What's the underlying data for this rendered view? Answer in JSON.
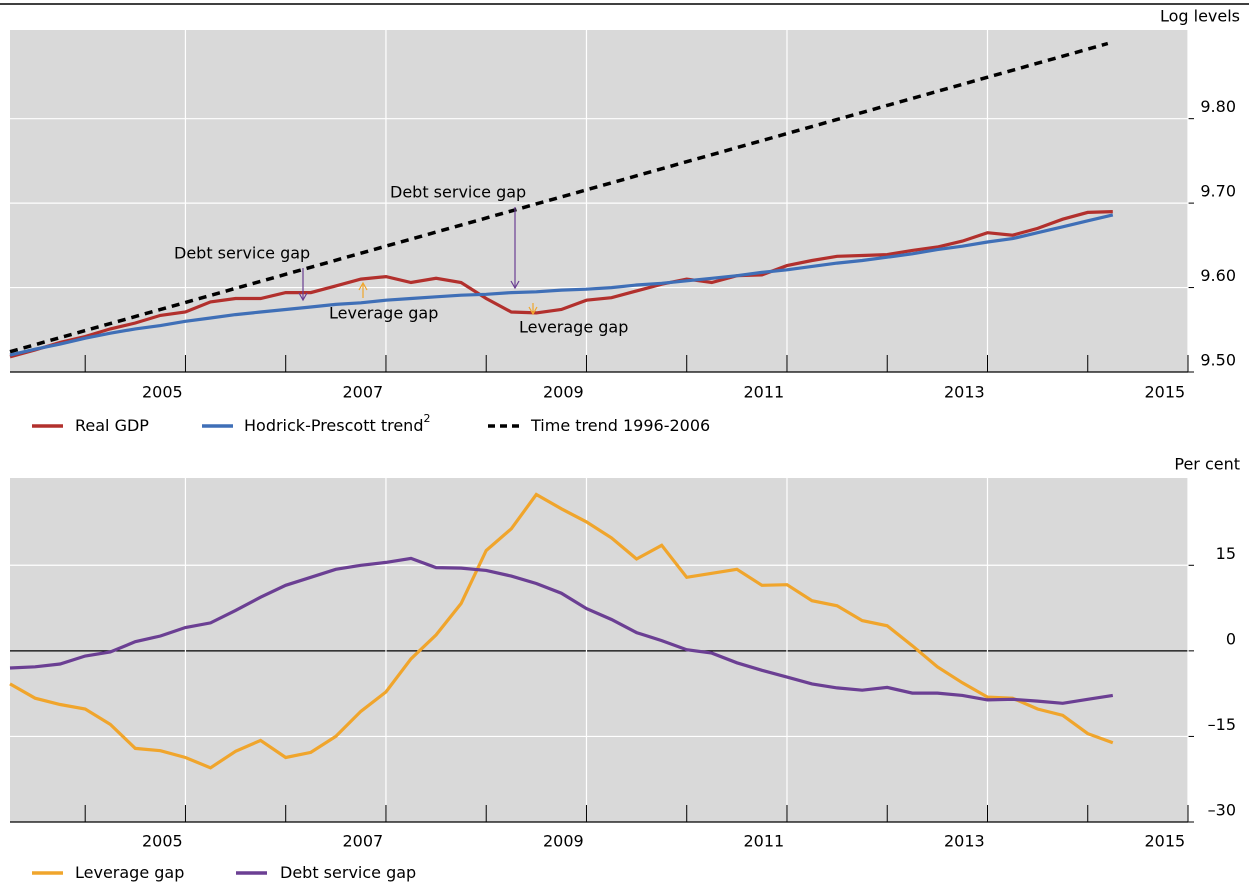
{
  "chart_data": [
    {
      "type": "line",
      "ylabel": "Log levels",
      "x": [
        2004.25,
        2004.5,
        2004.75,
        2005,
        2005.25,
        2005.5,
        2005.75,
        2006,
        2006.25,
        2006.5,
        2006.75,
        2007,
        2007.25,
        2007.5,
        2007.75,
        2008,
        2008.25,
        2008.5,
        2008.75,
        2009,
        2009.25,
        2009.5,
        2009.75,
        2010,
        2010.25,
        2010.5,
        2010.75,
        2011,
        2011.25,
        2011.5,
        2011.75,
        2012,
        2012.25,
        2012.5,
        2012.75,
        2013,
        2013.25,
        2013.5,
        2013.75,
        2014,
        2014.25,
        2014.5,
        2014.75,
        2015,
        2015.25
      ],
      "series": [
        {
          "name": "Real GDP",
          "color": "#b2302d",
          "values": [
            9.518,
            9.526,
            9.535,
            9.542,
            9.551,
            9.558,
            9.567,
            9.571,
            9.583,
            9.587,
            9.587,
            9.594,
            9.594,
            9.602,
            9.61,
            9.613,
            9.606,
            9.611,
            9.606,
            9.587,
            9.571,
            9.57,
            9.574,
            9.585,
            9.588,
            9.596,
            9.604,
            9.61,
            9.606,
            9.614,
            9.615,
            9.626,
            9.632,
            9.637,
            9.638,
            9.639,
            9.644,
            9.648,
            9.655,
            9.665,
            9.662,
            9.67,
            9.681,
            9.689,
            9.69
          ]
        },
        {
          "name": "Hodrick-Prescott trend",
          "footnote": "2",
          "color": "#3f6fb7",
          "values": [
            9.52,
            9.527,
            9.533,
            9.54,
            9.546,
            9.551,
            9.555,
            9.56,
            9.564,
            9.568,
            9.571,
            9.574,
            9.577,
            9.58,
            9.582,
            9.585,
            9.587,
            9.589,
            9.591,
            9.592,
            9.594,
            9.595,
            9.597,
            9.598,
            9.6,
            9.603,
            9.605,
            9.608,
            9.611,
            9.614,
            9.618,
            9.621,
            9.625,
            9.629,
            9.632,
            9.636,
            9.64,
            9.645,
            9.649,
            9.654,
            9.658,
            9.665,
            9.672,
            9.679,
            9.686
          ]
        },
        {
          "name": "Time trend 1996-2006",
          "color": "#000000",
          "dashed": true,
          "x": [
            2004.25,
            2015.2
          ],
          "values": [
            9.524,
            9.889
          ]
        }
      ],
      "annotations": [
        {
          "text": "Debt service gap",
          "color": "#6b3f93"
        },
        {
          "text": "Debt service gap",
          "color": "#6b3f93"
        },
        {
          "text": "Leverage gap",
          "color": "#f0a52c"
        },
        {
          "text": "Leverage gap",
          "color": "#f0a52c"
        }
      ],
      "xlim": [
        2004.25,
        2016
      ],
      "xticks": [
        2005,
        2007,
        2009,
        2011,
        2013,
        2015
      ],
      "ylim": [
        9.5,
        9.905
      ],
      "yticks": [
        {
          "value": 9.5,
          "label": "9.50"
        },
        {
          "value": 9.6,
          "label": "9.60"
        },
        {
          "value": 9.7,
          "label": "9.70"
        },
        {
          "value": 9.8,
          "label": "9.80"
        }
      ],
      "grid": true
    },
    {
      "type": "line",
      "ylabel": "Per cent",
      "x": [
        2004.25,
        2004.5,
        2004.75,
        2005,
        2005.25,
        2005.5,
        2005.75,
        2006,
        2006.25,
        2006.5,
        2006.75,
        2007,
        2007.25,
        2007.5,
        2007.75,
        2008,
        2008.25,
        2008.5,
        2008.75,
        2009,
        2009.25,
        2009.5,
        2009.75,
        2010,
        2010.25,
        2010.5,
        2010.75,
        2011,
        2011.25,
        2011.5,
        2011.75,
        2012,
        2012.25,
        2012.5,
        2012.75,
        2013,
        2013.25,
        2013.5,
        2013.75,
        2014,
        2014.25,
        2014.5,
        2014.75,
        2015,
        2015.25
      ],
      "series": [
        {
          "name": "Leverage gap",
          "color": "#f0a52c",
          "values": [
            -5.8,
            -8.3,
            -9.4,
            -10.2,
            -12.9,
            -17.1,
            -17.5,
            -18.7,
            -20.5,
            -17.6,
            -15.7,
            -18.7,
            -17.8,
            -15.0,
            -10.6,
            -7.2,
            -1.4,
            2.8,
            8.3,
            17.6,
            21.4,
            27.4,
            24.9,
            22.6,
            19.8,
            16.1,
            18.5,
            12.9,
            13.6,
            14.3,
            11.5,
            11.6,
            8.8,
            7.9,
            5.3,
            4.4,
            0.9,
            -2.8,
            -5.6,
            -8.1,
            -8.3,
            -10.2,
            -11.3,
            -14.5,
            -16.1
          ]
        },
        {
          "name": "Debt service gap",
          "color": "#6b3f93",
          "values": [
            -3.0,
            -2.8,
            -2.3,
            -0.9,
            -0.2,
            1.6,
            2.6,
            4.1,
            4.9,
            7.1,
            9.4,
            11.5,
            12.9,
            14.3,
            15.0,
            15.5,
            16.2,
            14.6,
            14.5,
            14.1,
            13.1,
            11.8,
            10.1,
            7.4,
            5.5,
            3.2,
            1.8,
            0.2,
            -0.4,
            -2.1,
            -3.4,
            -4.6,
            -5.8,
            -6.5,
            -6.9,
            -6.4,
            -7.4,
            -7.4,
            -7.8,
            -8.6,
            -8.5,
            -8.8,
            -9.2,
            -8.5,
            -7.8
          ]
        }
      ],
      "xlim": [
        2004.25,
        2016
      ],
      "xticks": [
        2005,
        2007,
        2009,
        2011,
        2013,
        2015
      ],
      "ylim": [
        -30,
        30.3
      ],
      "yticks": [
        {
          "value": -30,
          "label": "–30"
        },
        {
          "value": -15,
          "label": "–15"
        },
        0,
        15
      ],
      "grid": true
    }
  ]
}
